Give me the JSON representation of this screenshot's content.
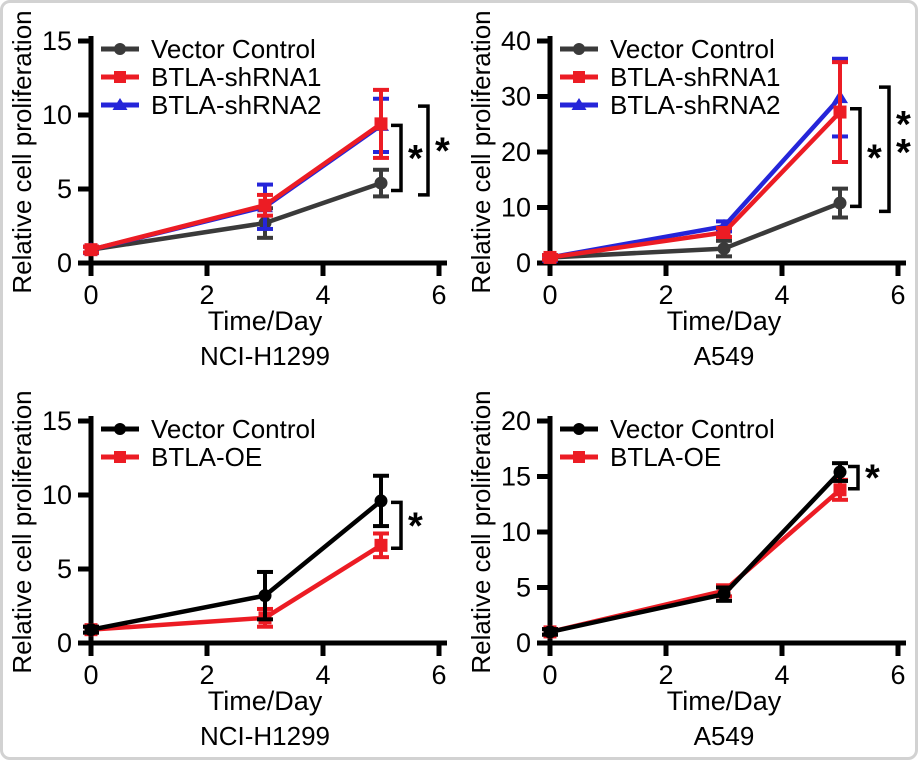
{
  "figure": {
    "type": "scientific-figure",
    "description": "Cell proliferation line charts, 2x2 grid",
    "background": "#ffffff",
    "frame_color": "#d2d2d2",
    "axis_color": "#000000"
  },
  "chart_data": [
    {
      "type": "line",
      "subtitle": "NCI-H1299",
      "xlabel": "Time/Day",
      "ylabel": "Relative cell proliferation",
      "xlim": [
        0,
        6
      ],
      "xticks": [
        0,
        2,
        4,
        6
      ],
      "ylim": [
        0,
        15
      ],
      "yticks": [
        0,
        5,
        10,
        15
      ],
      "x": [
        0,
        3,
        5
      ],
      "legend_position": "top-left-inside",
      "grid": false,
      "draw_order": [
        0,
        2,
        1
      ],
      "series": [
        {
          "name": "Vector Control",
          "color": "#3a3a3a",
          "marker": "circle",
          "values": [
            0.9,
            2.7,
            5.4
          ],
          "err": [
            0.2,
            1.0,
            0.9
          ]
        },
        {
          "name": "BTLA-shRNA1",
          "color": "#ec1c24",
          "marker": "square",
          "values": [
            0.9,
            3.9,
            9.4
          ],
          "err": [
            0.2,
            0.7,
            2.3
          ]
        },
        {
          "name": "BTLA-shRNA2",
          "color": "#2525d9",
          "marker": "triangle",
          "values": [
            0.9,
            3.8,
            9.3
          ],
          "err": [
            0.2,
            1.5,
            1.8
          ]
        }
      ],
      "brackets": [
        {
          "at_x": 5,
          "offset": 20,
          "top": 9.3,
          "bottom": 4.9,
          "label": "*"
        },
        {
          "at_x": 5,
          "offset": 47,
          "top": 10.6,
          "bottom": 4.6,
          "label": "*"
        }
      ]
    },
    {
      "type": "line",
      "subtitle": "A549",
      "xlabel": "Time/Day",
      "ylabel": "Relative cell proliferation",
      "xlim": [
        0,
        6
      ],
      "xticks": [
        0,
        2,
        4,
        6
      ],
      "ylim": [
        0,
        40
      ],
      "yticks": [
        0,
        10,
        20,
        30,
        40
      ],
      "x": [
        0,
        3,
        5
      ],
      "legend_position": "top-left-inside",
      "grid": false,
      "draw_order": [
        0,
        2,
        1
      ],
      "series": [
        {
          "name": "Vector Control",
          "color": "#3a3a3a",
          "marker": "circle",
          "values": [
            1.0,
            2.6,
            10.8
          ],
          "err": [
            0.4,
            1.4,
            2.6
          ]
        },
        {
          "name": "BTLA-shRNA1",
          "color": "#ec1c24",
          "marker": "square",
          "values": [
            1.0,
            5.5,
            27.2
          ],
          "err": [
            0.4,
            0.8,
            9.0
          ]
        },
        {
          "name": "BTLA-shRNA2",
          "color": "#2525d9",
          "marker": "triangle",
          "values": [
            1.0,
            6.6,
            29.8
          ],
          "err": [
            0.4,
            0.9,
            7.0
          ]
        }
      ],
      "brackets": [
        {
          "at_x": 5,
          "offset": 20,
          "top": 27.8,
          "bottom": 10.2,
          "label": "*"
        },
        {
          "at_x": 5,
          "offset": 49,
          "top": 31.7,
          "bottom": 9.3,
          "label": "**"
        }
      ]
    },
    {
      "type": "line",
      "subtitle": "NCI-H1299",
      "xlabel": "Time/Day",
      "ylabel": "Relative cell proliferation",
      "xlim": [
        0,
        6
      ],
      "xticks": [
        0,
        2,
        4,
        6
      ],
      "ylim": [
        0,
        15
      ],
      "yticks": [
        0,
        5,
        10,
        15
      ],
      "x": [
        0,
        3,
        5
      ],
      "legend_position": "top-left-inside",
      "grid": false,
      "draw_order": [
        1,
        0
      ],
      "series": [
        {
          "name": "Vector Control",
          "color": "#000000",
          "marker": "circle",
          "values": [
            0.9,
            3.2,
            9.6
          ],
          "err": [
            0.2,
            1.6,
            1.7
          ]
        },
        {
          "name": "BTLA-OE",
          "color": "#ec1c24",
          "marker": "square",
          "values": [
            0.9,
            1.7,
            6.6
          ],
          "err": [
            0.2,
            0.6,
            0.8
          ]
        }
      ],
      "brackets": [
        {
          "at_x": 5,
          "offset": 20,
          "top": 9.5,
          "bottom": 6.4,
          "label": "*"
        }
      ]
    },
    {
      "type": "line",
      "subtitle": "A549",
      "xlabel": "Time/Day",
      "ylabel": "Relative cell proliferation",
      "xlim": [
        0,
        6
      ],
      "xticks": [
        0,
        2,
        4,
        6
      ],
      "ylim": [
        0,
        20
      ],
      "yticks": [
        0,
        5,
        10,
        15,
        20
      ],
      "x": [
        0,
        3,
        5
      ],
      "legend_position": "top-left-inside",
      "grid": false,
      "draw_order": [
        1,
        0
      ],
      "series": [
        {
          "name": "Vector Control",
          "color": "#000000",
          "marker": "circle",
          "values": [
            1.0,
            4.4,
            15.4
          ],
          "err": [
            0.25,
            0.6,
            0.8
          ]
        },
        {
          "name": "BTLA-OE",
          "color": "#ec1c24",
          "marker": "square",
          "values": [
            1.0,
            4.7,
            13.8
          ],
          "err": [
            0.25,
            0.5,
            0.9
          ]
        }
      ],
      "brackets": [
        {
          "at_x": 5,
          "offset": 18,
          "top": 15.9,
          "bottom": 13.9,
          "label": "*"
        }
      ]
    }
  ]
}
